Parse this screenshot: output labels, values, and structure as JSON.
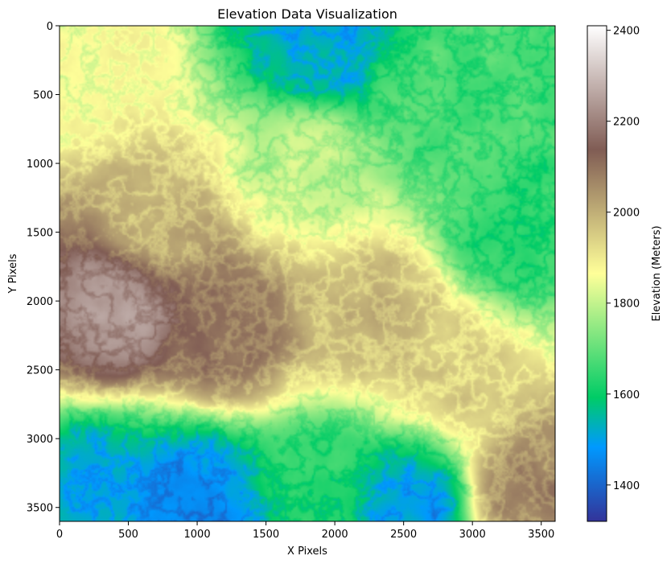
{
  "chart_data": {
    "type": "heatmap",
    "title": "Elevation Data Visualization",
    "xlabel": "X Pixels",
    "ylabel": "Y Pixels",
    "xlim": [
      0,
      3601
    ],
    "ylim": [
      3601,
      0
    ],
    "x_ticks": [
      0,
      500,
      1000,
      1500,
      2000,
      2500,
      3000,
      3500
    ],
    "y_ticks": [
      0,
      500,
      1000,
      1500,
      2000,
      2500,
      3000,
      3500
    ],
    "grid": false,
    "colormap": "terrain",
    "colorbar": {
      "label": "Elevation (Meters)",
      "range": [
        1320,
        2410
      ],
      "ticks": [
        1400,
        1600,
        1800,
        2000,
        2200,
        2400
      ],
      "stops": [
        {
          "t": 0.0,
          "color": "#333399"
        },
        {
          "t": 0.15,
          "color": "#0099ff"
        },
        {
          "t": 0.25,
          "color": "#00cc66"
        },
        {
          "t": 0.5,
          "color": "#ffff99"
        },
        {
          "t": 0.75,
          "color": "#805c54"
        },
        {
          "t": 1.0,
          "color": "#ffffff"
        }
      ]
    },
    "elevation_field": {
      "description_of_regions_in_data_units": [
        {
          "x": 1900,
          "y": 150,
          "elev": 1530
        },
        {
          "x": 2700,
          "y": 500,
          "elev": 1680
        },
        {
          "x": 3300,
          "y": 1500,
          "elev": 1650
        },
        {
          "x": 1800,
          "y": 1000,
          "elev": 1810
        },
        {
          "x": 700,
          "y": 1400,
          "elev": 2000
        },
        {
          "x": 400,
          "y": 2050,
          "elev": 2250
        },
        {
          "x": 1200,
          "y": 2200,
          "elev": 2120
        },
        {
          "x": 2300,
          "y": 2100,
          "elev": 2000
        },
        {
          "x": 2800,
          "y": 2500,
          "elev": 1960
        },
        {
          "x": 3400,
          "y": 3400,
          "elev": 2080
        },
        {
          "x": 1000,
          "y": 3450,
          "elev": 1480
        },
        {
          "x": 300,
          "y": 3400,
          "elev": 1520
        },
        {
          "x": 1900,
          "y": 3400,
          "elev": 1650
        },
        {
          "x": 2550,
          "y": 3500,
          "elev": 1500
        },
        {
          "x": 200,
          "y": 300,
          "elev": 1880
        }
      ]
    }
  }
}
